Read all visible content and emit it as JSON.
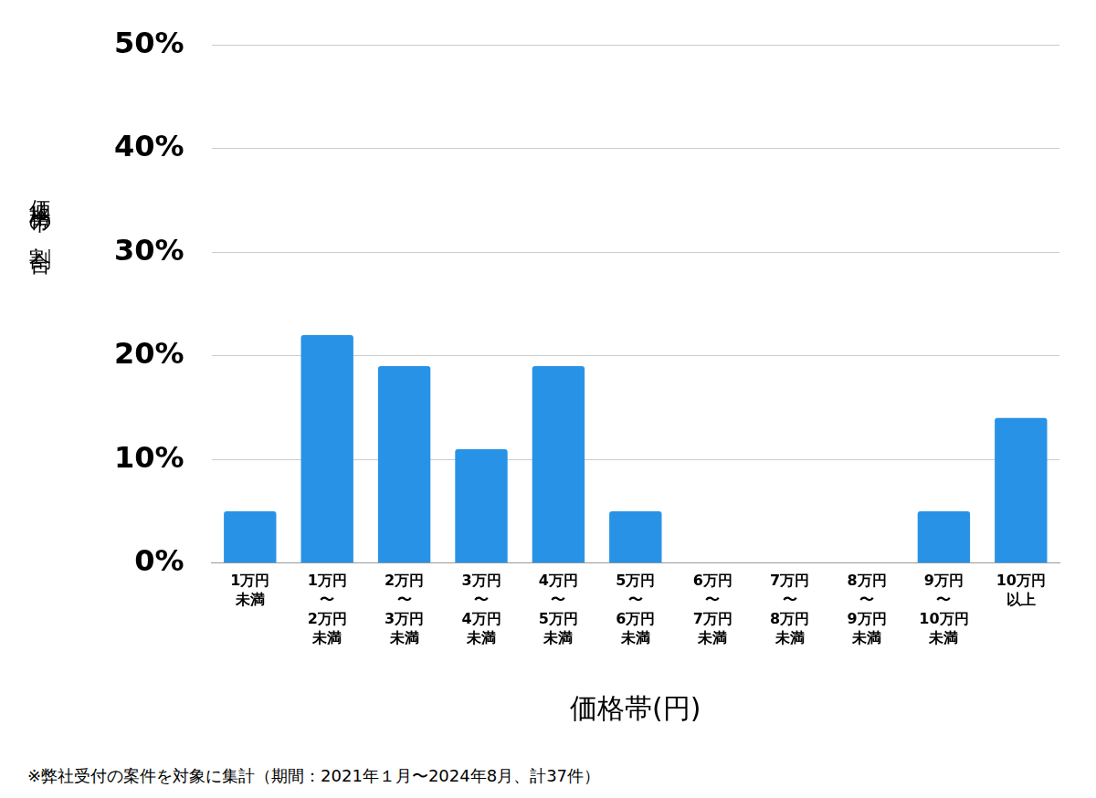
{
  "chart_data": {
    "type": "bar",
    "y_label": "価格帯の割合",
    "x_label": "価格帯(円)",
    "footnote": "※弊社受付の案件を対象に集計（期間：2021年１月〜2024年8月、計37件）",
    "categories": [
      "1万円\n未満",
      "1万円\n〜\n2万円\n未満",
      "2万円\n〜\n3万円\n未満",
      "3万円\n〜\n4万円\n未満",
      "4万円\n〜\n5万円\n未満",
      "5万円\n〜\n6万円\n未満",
      "6万円\n〜\n7万円\n未満",
      "7万円\n〜\n8万円\n未満",
      "8万円\n〜\n9万円\n未満",
      "9万円\n〜\n10万円\n未満",
      "10万円\n以上"
    ],
    "values": [
      5,
      22,
      19,
      11,
      19,
      5,
      0,
      0,
      0,
      5,
      14
    ],
    "color": "#2893e6",
    "ylim": [
      0,
      50
    ],
    "yticks": [
      {
        "value": 0,
        "label": "0%"
      },
      {
        "value": 10,
        "label": "10%"
      },
      {
        "value": 20,
        "label": "20%"
      },
      {
        "value": 30,
        "label": "30%"
      },
      {
        "value": 40,
        "label": "40%"
      },
      {
        "value": 50,
        "label": "50%"
      }
    ],
    "grid": true
  }
}
